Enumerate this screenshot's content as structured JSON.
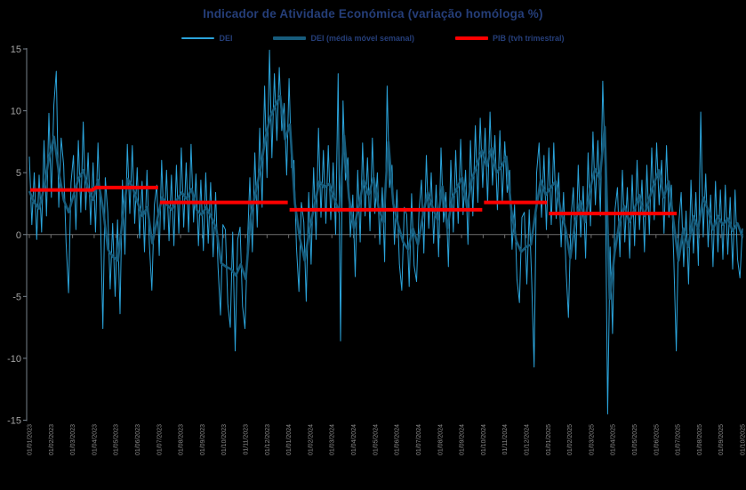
{
  "chart_data": {
    "type": "line",
    "title": "Indicador de Atividade Económica (variação homóloga %)",
    "title_color": "#253E79",
    "background": "#000000",
    "legend_position": "top",
    "grid": false,
    "y_axis": {
      "min": -15,
      "max": 15,
      "step": 5,
      "ticks": [
        15,
        10,
        5,
        0,
        -5,
        -10,
        -15
      ],
      "label_color": "#A3A3A3"
    },
    "x_axis": {
      "label_color": "#8A8A8A",
      "axis_color": "#6E6E6E",
      "ticks": [
        "01/01/2023",
        "01/02/2023",
        "01/03/2023",
        "01/04/2023",
        "01/05/2023",
        "01/06/2023",
        "01/07/2023",
        "01/08/2023",
        "01/09/2023",
        "01/10/2023",
        "01/11/2023",
        "01/12/2023",
        "01/01/2024",
        "01/02/2024",
        "01/03/2024",
        "01/04/2024",
        "01/05/2024",
        "01/06/2024",
        "01/07/2024",
        "01/08/2024",
        "01/09/2024",
        "01/10/2024",
        "01/11/2024",
        "01/12/2024",
        "01/01/2025",
        "01/02/2025",
        "01/03/2025",
        "01/04/2025",
        "01/05/2025",
        "01/06/2025",
        "01/07/2025",
        "01/08/2025",
        "01/09/2025",
        "01/10/2025"
      ]
    },
    "series": [
      {
        "name": "DEI",
        "color": "#2BA4DB",
        "stroke_width": 1,
        "values": [
          6.3,
          0.8,
          5.0,
          -0.4,
          4.8,
          0.2,
          7.6,
          1.5,
          9.8,
          3.0,
          10.5,
          13.2,
          2.2,
          7.8,
          5.6,
          -0.6,
          -4.7,
          4.2,
          6.4,
          0.4,
          7.6,
          1.8,
          9.1,
          2.0,
          6.6,
          0.8,
          5.8,
          0.2,
          7.4,
          1.6,
          -7.6,
          4.6,
          1.8,
          -4.4,
          0.9,
          -5.0,
          1.2,
          -6.4,
          4.4,
          -1.6,
          7.3,
          1.7,
          7.2,
          0.9,
          5.4,
          -0.3,
          4.3,
          -1.4,
          5.2,
          -0.8,
          -4.5,
          2.4,
          4.0,
          -1.7,
          6.0,
          0.4,
          5.2,
          -0.5,
          4.8,
          -0.9,
          5.6,
          0.1,
          7.0,
          0.6,
          5.8,
          0.2,
          7.3,
          1.0,
          4.9,
          -0.9,
          4.4,
          -1.3,
          5.0,
          -0.7,
          4.2,
          -1.8,
          3.4,
          -2.6,
          -6.5,
          0.8,
          0.4,
          -5.6,
          -7.5,
          0.2,
          -9.4,
          -0.4,
          0.6,
          -5.8,
          -7.6,
          -0.8,
          4.6,
          -1.4,
          6.6,
          0.6,
          8.6,
          2.2,
          12.0,
          4.6,
          14.9,
          6.2,
          13.0,
          7.6,
          13.5,
          8.4,
          10.6,
          4.8,
          12.6,
          5.4,
          6.0,
          -1.0,
          -4.6,
          2.6,
          1.0,
          -5.4,
          3.4,
          -2.4,
          5.4,
          -0.4,
          8.6,
          1.4,
          6.8,
          0.9,
          7.2,
          1.2,
          5.8,
          0.0,
          13.0,
          -8.6,
          10.8,
          4.4,
          6.2,
          -0.2,
          3.2,
          -3.4,
          5.2,
          -0.6,
          7.4,
          1.5,
          6.2,
          0.3,
          7.8,
          1.7,
          5.0,
          -0.8,
          3.8,
          -2.2,
          12.0,
          3.8,
          5.6,
          -0.8,
          3.6,
          -2.4,
          -4.5,
          2.2,
          1.6,
          -4.2,
          3.3,
          -2.5,
          -3.8,
          1.8,
          4.4,
          -1.5,
          6.4,
          0.5,
          5.0,
          -0.7,
          4.0,
          -1.8,
          7.0,
          1.0,
          3.4,
          -2.6,
          6.0,
          0.2,
          6.8,
          0.9,
          7.7,
          1.6,
          5.2,
          -0.8,
          7.6,
          1.5,
          8.8,
          2.6,
          9.4,
          3.8,
          8.6,
          2.5,
          9.9,
          4.0,
          8.0,
          2.0,
          8.4,
          2.6,
          7.5,
          3.4,
          5.2,
          -1.2,
          2.4,
          -3.6,
          -5.5,
          1.4,
          1.8,
          -4.0,
          2.0,
          -3.8,
          -10.7,
          5.0,
          7.4,
          1.4,
          6.4,
          0.4,
          7.0,
          0.8,
          7.4,
          1.3,
          5.0,
          -1.0,
          3.4,
          -2.8,
          -6.7,
          1.2,
          3.8,
          -2.0,
          5.6,
          -0.2,
          3.9,
          -1.9,
          6.6,
          0.7,
          8.3,
          2.4,
          7.6,
          1.5,
          12.4,
          5.0,
          -14.5,
          -1.0,
          -8.0,
          2.0,
          3.8,
          -1.8,
          5.2,
          -0.6,
          3.8,
          -1.9,
          4.8,
          -0.9,
          6.0,
          0.4,
          4.4,
          -1.4,
          5.6,
          0.0,
          7.0,
          1.2,
          7.4,
          2.4,
          6.0,
          0.1,
          7.2,
          1.4,
          4.0,
          -2.0,
          -9.4,
          0.8,
          3.4,
          -2.6,
          1.9,
          -4.0,
          4.4,
          -1.5,
          3.4,
          -2.5,
          9.9,
          -0.2,
          4.9,
          -1.0,
          3.2,
          -2.6,
          4.3,
          -1.4,
          3.6,
          -2.0,
          4.0,
          -1.6,
          3.0,
          -2.8,
          3.6,
          -2.0,
          -3.5,
          0.5
        ]
      },
      {
        "name": "DEI (média móvel semanal)",
        "color": "#175C7C",
        "stroke_width": 2.6,
        "values": [
          3.5,
          2.6,
          2.1,
          3.8,
          6.2,
          7.9,
          5.0,
          2.8,
          1.8,
          3.2,
          4.5,
          5.2,
          3.6,
          2.8,
          4.4,
          2.0,
          -1.2,
          -1.8,
          -2.1,
          1.4,
          4.5,
          3.8,
          2.6,
          1.5,
          2.2,
          -0.7,
          1.2,
          3.0,
          2.4,
          2.0,
          2.8,
          3.4,
          2.9,
          3.7,
          2.0,
          1.6,
          2.2,
          1.4,
          0.5,
          -2.3,
          -2.6,
          -2.8,
          -3.3,
          -2.4,
          -3.6,
          1.5,
          3.4,
          5.3,
          7.8,
          9.5,
          10.4,
          11.2,
          7.7,
          8.9,
          2.5,
          -0.3,
          -2.1,
          0.5,
          2.4,
          4.3,
          3.8,
          4.1,
          2.9,
          1.8,
          8.0,
          3.0,
          0.5,
          2.3,
          4.4,
          3.2,
          4.6,
          2.2,
          1.0,
          7.5,
          2.5,
          0.8,
          -0.6,
          -1.2,
          0.5,
          -0.8,
          1.5,
          3.4,
          2.2,
          1.2,
          3.9,
          0.5,
          3.0,
          3.8,
          4.6,
          2.2,
          4.5,
          5.6,
          6.8,
          5.5,
          7.0,
          5.0,
          5.5,
          6.3,
          2.0,
          -0.5,
          -1.4,
          -1.0,
          -0.8,
          2.0,
          4.4,
          3.2,
          3.8,
          4.3,
          2.0,
          0.5,
          -1.9,
          1.0,
          2.7,
          1.0,
          3.6,
          5.3,
          4.5,
          8.7,
          -5.2,
          -1.5,
          1.0,
          2.3,
          1.0,
          2.0,
          3.2,
          1.5,
          2.8,
          4.1,
          5.2,
          3.0,
          4.3,
          1.0,
          -2.1,
          0.5,
          -1.0,
          1.5,
          0.5,
          3.0,
          2.0,
          0.4,
          1.5,
          0.8,
          1.3,
          0.3,
          0.9,
          -0.2
        ]
      },
      {
        "name": "PIB (tvh trimestral)",
        "color": "#FF0000",
        "stroke_width": 4,
        "type": "step-segments",
        "segments": [
          {
            "from_month": 0,
            "to_month": 3,
            "value": 3.6
          },
          {
            "from_month": 3,
            "to_month": 6,
            "value": 3.8
          },
          {
            "from_month": 6,
            "to_month": 12,
            "value": 2.6
          },
          {
            "from_month": 12,
            "to_month": 21,
            "value": 2.0
          },
          {
            "from_month": 21,
            "to_month": 24,
            "value": 2.6
          },
          {
            "from_month": 24,
            "to_month": 30,
            "value": 1.7
          }
        ]
      }
    ]
  }
}
